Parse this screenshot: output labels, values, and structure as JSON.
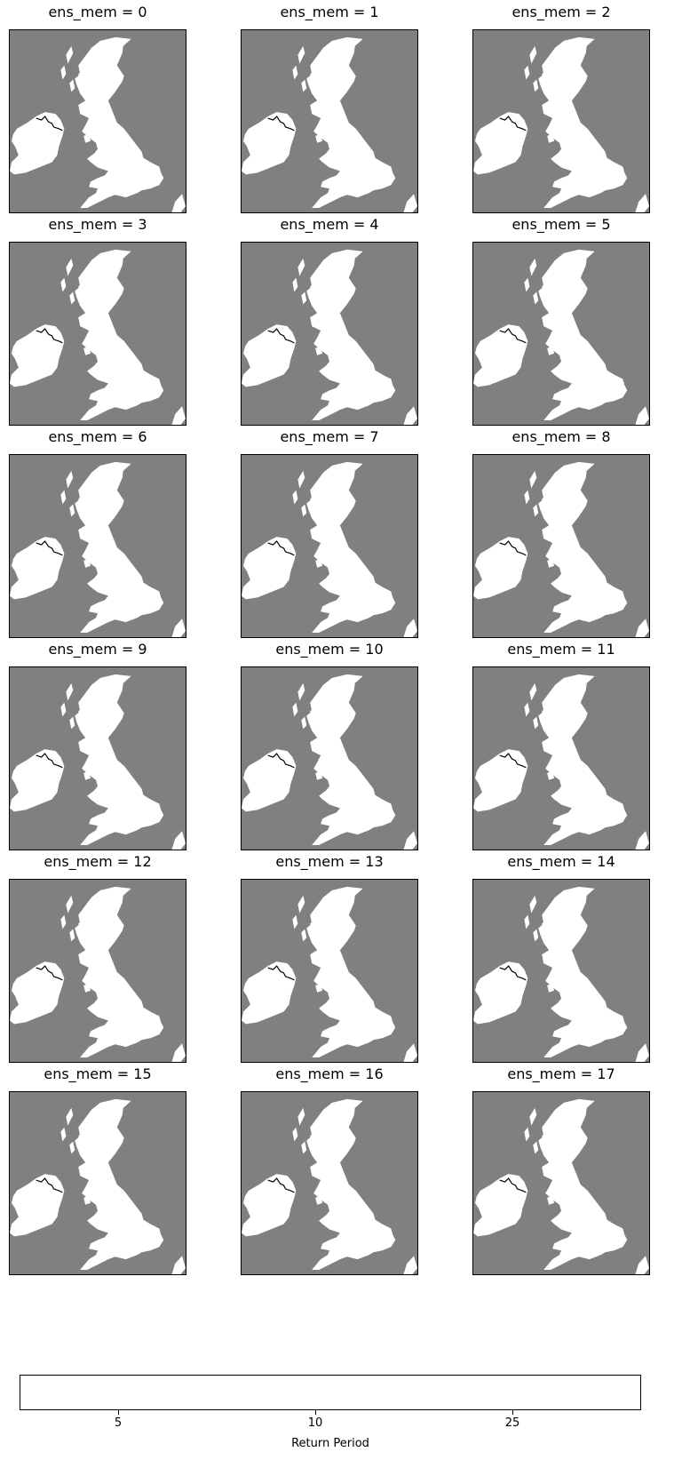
{
  "panels": [
    {
      "title": "ens_mem = 0"
    },
    {
      "title": "ens_mem = 1"
    },
    {
      "title": "ens_mem = 2"
    },
    {
      "title": "ens_mem = 3"
    },
    {
      "title": "ens_mem = 4"
    },
    {
      "title": "ens_mem = 5"
    },
    {
      "title": "ens_mem = 6"
    },
    {
      "title": "ens_mem = 7"
    },
    {
      "title": "ens_mem = 8"
    },
    {
      "title": "ens_mem = 9"
    },
    {
      "title": "ens_mem = 10"
    },
    {
      "title": "ens_mem = 11"
    },
    {
      "title": "ens_mem = 12"
    },
    {
      "title": "ens_mem = 13"
    },
    {
      "title": "ens_mem = 14"
    },
    {
      "title": "ens_mem = 15"
    },
    {
      "title": "ens_mem = 16"
    },
    {
      "title": "ens_mem = 17"
    }
  ],
  "colors": {
    "sea": "#808080",
    "land": "#ffffff",
    "border": "#000000"
  },
  "colorbar": {
    "label": "Return Period",
    "ticks": [
      "5",
      "10",
      "25"
    ]
  }
}
